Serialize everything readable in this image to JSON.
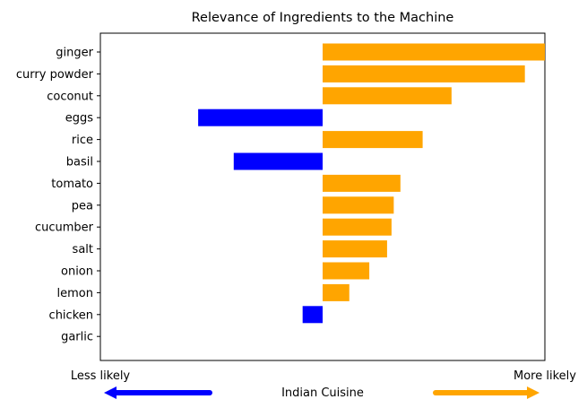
{
  "chart_data": {
    "type": "bar",
    "orientation": "horizontal",
    "title": "Relevance of Ingredients to the Machine",
    "categories": [
      "ginger",
      "curry powder",
      "coconut",
      "eggs",
      "rice",
      "basil",
      "tomato",
      "pea",
      "cucumber",
      "salt",
      "onion",
      "lemon",
      "chicken",
      "garlic"
    ],
    "values": [
      0.5,
      0.455,
      0.29,
      -0.28,
      0.225,
      -0.2,
      0.175,
      0.16,
      0.155,
      0.145,
      0.105,
      0.06,
      -0.045,
      0.0
    ],
    "xlim": [
      -0.5,
      0.5
    ],
    "x_ticks": false,
    "positive_color": "#FFA500",
    "negative_color": "#0000FF",
    "left_label": "Less likely",
    "right_label": "More likely",
    "center_label": "Indian Cuisine",
    "left_arrow_color": "#0000FF",
    "right_arrow_color": "#FFA500",
    "grid": false
  }
}
